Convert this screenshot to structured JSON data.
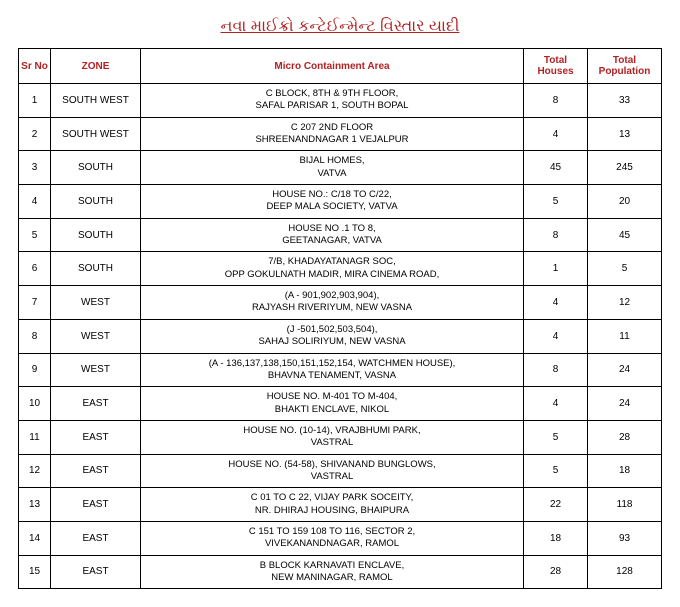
{
  "title": "નવા માઈક્રો કન્ટેઈન્મેન્ટ વિસ્તાર યાદી",
  "columns": {
    "sr": "Sr No",
    "zone": "ZONE",
    "area": "Micro Containment Area",
    "houses": "Total Houses",
    "pop": "Total Population"
  },
  "rows": [
    {
      "sr": "1",
      "zone": "SOUTH WEST",
      "area_l1": "C BLOCK, 8TH & 9TH FLOOR,",
      "area_l2": "SAFAL PARISAR 1, SOUTH BOPAL",
      "houses": "8",
      "pop": "33"
    },
    {
      "sr": "2",
      "zone": "SOUTH WEST",
      "area_l1": "C 207 2ND FLOOR",
      "area_l2": "SHREENANDNAGAR 1 VEJALPUR",
      "houses": "4",
      "pop": "13"
    },
    {
      "sr": "3",
      "zone": "SOUTH",
      "area_l1": "BIJAL HOMES,",
      "area_l2": "VATVA",
      "houses": "45",
      "pop": "245"
    },
    {
      "sr": "4",
      "zone": "SOUTH",
      "area_l1": "HOUSE NO.: C/18 TO C/22,",
      "area_l2": "DEEP MALA SOCIETY, VATVA",
      "houses": "5",
      "pop": "20"
    },
    {
      "sr": "5",
      "zone": "SOUTH",
      "area_l1": "HOUSE NO .1 TO  8,",
      "area_l2": "GEETANAGAR, VATVA",
      "houses": "8",
      "pop": "45"
    },
    {
      "sr": "6",
      "zone": "SOUTH",
      "area_l1": "7/B, KHADAYATANAGR SOC,",
      "area_l2": "OPP GOKULNATH MADIR, MIRA CINEMA ROAD,",
      "houses": "1",
      "pop": "5"
    },
    {
      "sr": "7",
      "zone": "WEST",
      "area_l1": "(A - 901,902,903,904),",
      "area_l2": "RAJYASH RIVERIYUM, NEW VASNA",
      "houses": "4",
      "pop": "12"
    },
    {
      "sr": "8",
      "zone": "WEST",
      "area_l1": "(J -501,502,503,504),",
      "area_l2": "SAHAJ SOLIRIYUM, NEW VASNA",
      "houses": "4",
      "pop": "11"
    },
    {
      "sr": "9",
      "zone": "WEST",
      "area_l1": "(A - 136,137,138,150,151,152,154, WATCHMEN HOUSE),",
      "area_l2": "BHAVNA TENAMENT, VASNA",
      "houses": "8",
      "pop": "24"
    },
    {
      "sr": "10",
      "zone": "EAST",
      "area_l1": "HOUSE NO. M-401 TO M-404,",
      "area_l2": "BHAKTI ENCLAVE, NIKOL",
      "houses": "4",
      "pop": "24"
    },
    {
      "sr": "11",
      "zone": "EAST",
      "area_l1": "HOUSE NO.  (10-14), VRAJBHUMI PARK,",
      "area_l2": "VASTRAL",
      "houses": "5",
      "pop": "28"
    },
    {
      "sr": "12",
      "zone": "EAST",
      "area_l1": "HOUSE NO. (54-58), SHIVANAND BUNGLOWS,",
      "area_l2": "VASTRAL",
      "houses": "5",
      "pop": "18"
    },
    {
      "sr": "13",
      "zone": "EAST",
      "area_l1": "C 01 TO C 22, VIJAY PARK SOCEITY,",
      "area_l2": "NR. DHIRAJ HOUSING, BHAIPURA",
      "houses": "22",
      "pop": "118"
    },
    {
      "sr": "14",
      "zone": "EAST",
      "area_l1": "C 151 TO 159 108 TO 116, SECTOR 2,",
      "area_l2": "VIVEKANANDNAGAR, RAMOL",
      "houses": "18",
      "pop": "93"
    },
    {
      "sr": "15",
      "zone": "EAST",
      "area_l1": "B BLOCK KARNAVATI ENCLAVE,",
      "area_l2": "NEW MANINAGAR, RAMOL",
      "houses": "28",
      "pop": "128"
    }
  ]
}
